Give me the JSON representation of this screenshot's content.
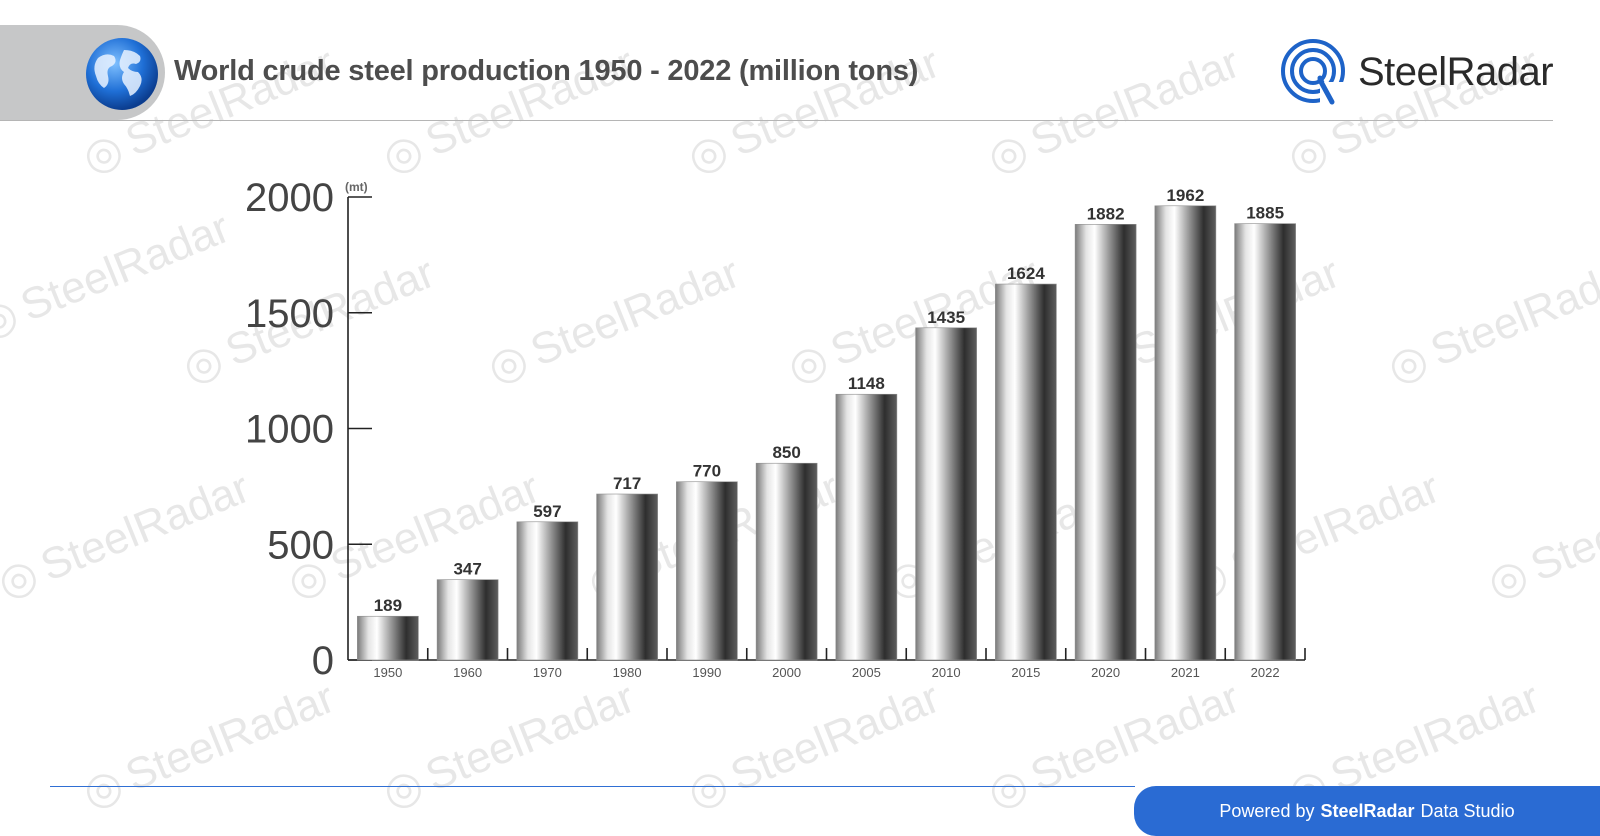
{
  "header": {
    "title": "World crude steel production 1950 - 2022 (million tons)",
    "brand_name_bold": "Steel",
    "brand_name_light": "Radar",
    "globe_icon": "globe-icon",
    "accent_color": "#1e63c8"
  },
  "watermark_text": "SteelRadar",
  "footer": {
    "prefix": "Powered by",
    "brand": "SteelRadar",
    "suffix": "Data Studio",
    "badge_color": "#2a6bd3"
  },
  "chart_data": {
    "type": "bar",
    "unit_label": "(mt)",
    "categories": [
      "1950",
      "1960",
      "1970",
      "1980",
      "1990",
      "2000",
      "2005",
      "2010",
      "2015",
      "2020",
      "2021",
      "2022"
    ],
    "values": [
      189,
      347,
      597,
      717,
      770,
      850,
      1148,
      1435,
      1624,
      1882,
      1962,
      1885
    ],
    "y_ticks": [
      0,
      500,
      1000,
      1500,
      2000
    ],
    "ylim": [
      0,
      2000
    ],
    "grid": false,
    "data_labels": true,
    "bar_style": "metallic gradient"
  }
}
